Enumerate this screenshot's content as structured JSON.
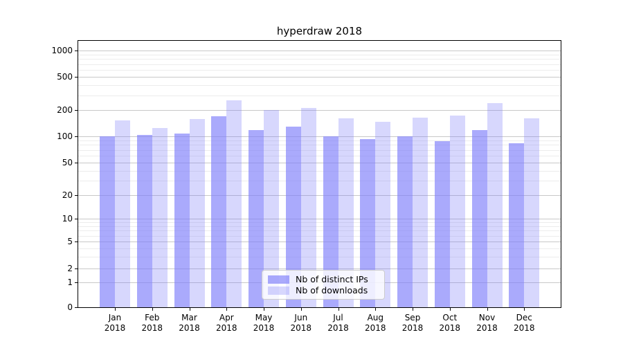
{
  "figure": {
    "title": "hyperdraw 2018"
  },
  "chart_data": {
    "type": "bar",
    "title": "hyperdraw 2018",
    "yscale": "symlog",
    "grid": "on",
    "categories": [
      "Jan 2018",
      "Feb 2018",
      "Mar 2018",
      "Apr 2018",
      "May 2018",
      "Jun 2018",
      "Jul 2018",
      "Aug 2018",
      "Sep 2018",
      "Oct 2018",
      "Nov 2018",
      "Dec 2018"
    ],
    "x_tick_labels": [
      {
        "month": "Jan",
        "year": "2018"
      },
      {
        "month": "Feb",
        "year": "2018"
      },
      {
        "month": "Mar",
        "year": "2018"
      },
      {
        "month": "Apr",
        "year": "2018"
      },
      {
        "month": "May",
        "year": "2018"
      },
      {
        "month": "Jun",
        "year": "2018"
      },
      {
        "month": "Jul",
        "year": "2018"
      },
      {
        "month": "Aug",
        "year": "2018"
      },
      {
        "month": "Sep",
        "year": "2018"
      },
      {
        "month": "Oct",
        "year": "2018"
      },
      {
        "month": "Nov",
        "year": "2018"
      },
      {
        "month": "Dec",
        "year": "2018"
      }
    ],
    "series": [
      {
        "name": "Nb of distinct IPs",
        "color": "rgba(124,124,250,0.65)",
        "values": [
          100,
          104,
          109,
          170,
          118,
          130,
          101,
          93,
          101,
          88,
          119,
          84
        ]
      },
      {
        "name": "Nb of downloads",
        "color": "rgba(124,124,250,0.30)",
        "values": [
          153,
          125,
          157,
          260,
          200,
          210,
          162,
          148,
          165,
          172,
          240,
          160
        ]
      }
    ],
    "y_axis": {
      "major_ticks": [
        0,
        1,
        2,
        5,
        10,
        20,
        50,
        100,
        200,
        500,
        1000
      ],
      "minor_ticks": [
        3,
        4,
        6,
        7,
        8,
        9,
        30,
        40,
        60,
        70,
        80,
        90,
        300,
        400,
        600,
        700,
        800,
        900
      ],
      "tick_fractions": [
        {
          "v": 0,
          "f": 0.0
        },
        {
          "v": 1,
          "f": 0.0927
        },
        {
          "v": 2,
          "f": 0.1462
        },
        {
          "v": 5,
          "f": 0.246
        },
        {
          "v": 10,
          "f": 0.3332
        },
        {
          "v": 20,
          "f": 0.42
        },
        {
          "v": 50,
          "f": 0.5429
        },
        {
          "v": 100,
          "f": 0.6408
        },
        {
          "v": 200,
          "f": 0.7403
        },
        {
          "v": 500,
          "f": 0.8649
        },
        {
          "v": 1000,
          "f": 0.9629
        }
      ],
      "range_shown": [
        0,
        1000
      ]
    },
    "legend": {
      "position": "lower center",
      "entries": [
        "Nb of distinct IPs",
        "Nb of downloads"
      ]
    }
  },
  "style": {
    "bar_dark": "rgba(124,124,250,0.65)",
    "bar_light": "rgba(124,124,250,0.30)",
    "bar_dark_on_white": "#aaaafc",
    "bar_light_on_white": "#d8d8fb",
    "grid_major": "#c8c8c8",
    "grid_minor": "#ececec",
    "spine": "#000000",
    "text": "#000000",
    "legend_border": "#cccccc"
  }
}
